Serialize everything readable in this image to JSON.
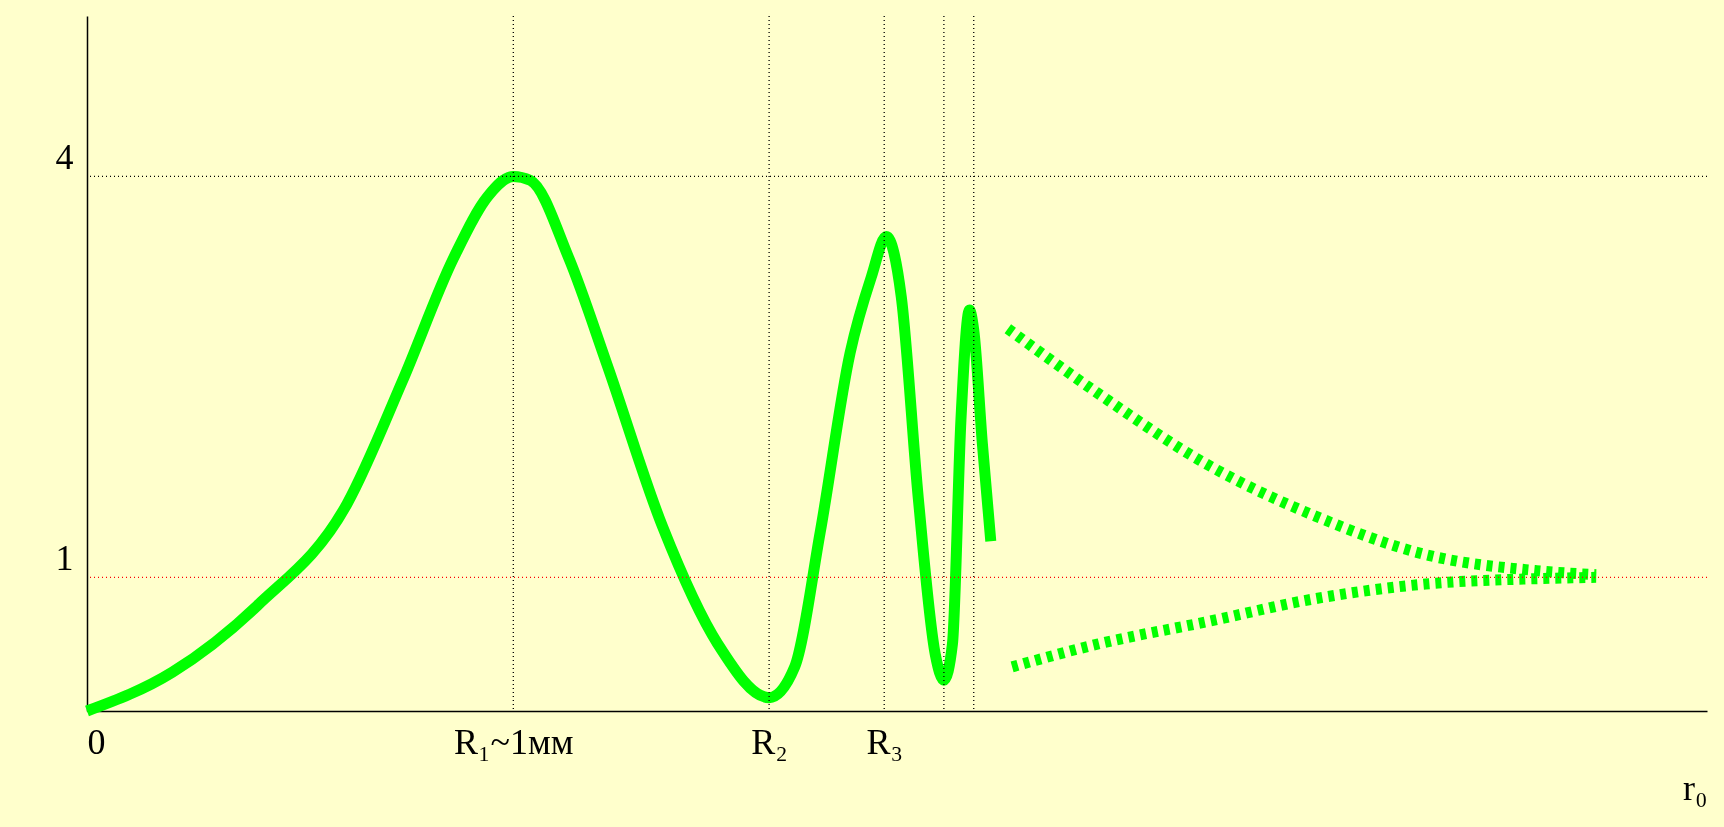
{
  "chart_data": {
    "type": "line",
    "xlabel": "r₀",
    "xlim": [
      0,
      3.8
    ],
    "ylim": [
      0,
      5.2
    ],
    "xticks": [
      0,
      {
        "value": 1,
        "label": "R₁~1мм"
      },
      {
        "value": 1.6,
        "label": "R₂"
      },
      {
        "value": 1.87,
        "label": "R₃"
      }
    ],
    "yticks": [
      1,
      4
    ],
    "grid": false,
    "marker": "none",
    "ref_lines": [
      {
        "axis": "x",
        "value": 1,
        "color": "#000000",
        "line_style": "dotted"
      },
      {
        "axis": "x",
        "value": 1.6,
        "color": "#000000",
        "line_style": "dotted"
      },
      {
        "axis": "x",
        "value": 1.87,
        "color": "#000000",
        "line_style": "dotted"
      },
      {
        "axis": "x",
        "value": 2.01,
        "color": "#000000",
        "line_style": "dotted"
      },
      {
        "axis": "x",
        "value": 2.08,
        "color": "#000000",
        "line_style": "dotted"
      },
      {
        "axis": "y",
        "value": 4,
        "color": "#000000",
        "line_style": "dotted"
      },
      {
        "axis": "y",
        "value": 1,
        "color": "#ff0000",
        "line_style": "dotted"
      }
    ],
    "series": [
      {
        "color": "#00ff00",
        "line_style": "solid",
        "x": [
          0,
          0.2,
          0.4,
          0.61,
          0.74,
          0.86,
          0.94,
          1,
          1.04,
          1.13,
          1.22,
          1.35,
          1.48,
          1.6,
          1.66,
          1.72,
          1.79,
          1.84,
          1.875,
          1.91,
          1.95,
          1.99,
          2.01,
          2.03,
          2.05,
          2.07,
          2.08,
          2.1,
          2.12
        ],
        "values": [
          0,
          0.29,
          0.79,
          1.55,
          2.47,
          3.39,
          3.85,
          4,
          3.97,
          3.39,
          2.59,
          1.38,
          0.5,
          0.1,
          0.33,
          1.34,
          2.68,
          3.25,
          3.55,
          3.1,
          1.59,
          0.42,
          0.23,
          0.5,
          2.18,
          3,
          2.85,
          2.01,
          1.27
        ]
      },
      {
        "color": "#00ff00",
        "line_style": "dotted",
        "x": [
          2.16,
          2.37,
          2.63,
          2.88,
          3.14,
          3.4,
          3.54
        ],
        "values": [
          2.86,
          2.38,
          1.84,
          1.46,
          1.17,
          1.05,
          1.02
        ]
      },
      {
        "color": "#00ff00",
        "line_style": "dotted",
        "x": [
          2.17,
          2.37,
          2.63,
          2.88,
          3.14,
          3.4,
          3.54
        ],
        "values": [
          0.33,
          0.5,
          0.67,
          0.84,
          0.95,
          0.99,
          1
        ]
      }
    ]
  }
}
